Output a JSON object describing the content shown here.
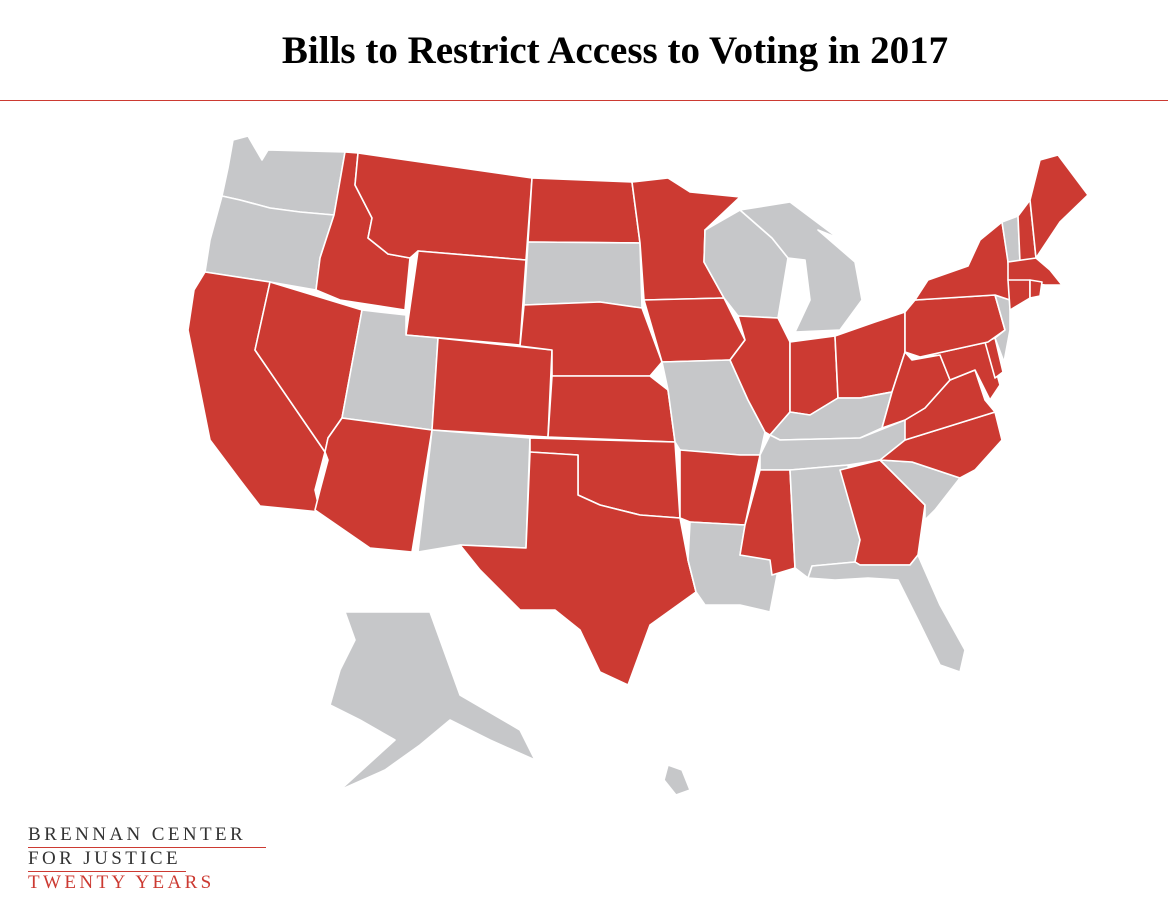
{
  "title": "Bills to Restrict Access to Voting in 2017",
  "colors": {
    "restrict": "#cc3a32",
    "none": "#c6c7c9",
    "rule": "#cc3a32"
  },
  "states": {
    "restrict": [
      "ID",
      "MT",
      "ND",
      "WY",
      "NE",
      "KS",
      "CO",
      "AZ",
      "NV",
      "CA",
      "TX",
      "OK",
      "MN",
      "IA",
      "AR",
      "MS",
      "IL",
      "IN",
      "OH",
      "WV",
      "VA",
      "NC",
      "GA",
      "PA",
      "NY",
      "NH",
      "ME",
      "MA",
      "CT",
      "RI",
      "MD",
      "DE"
    ],
    "none": [
      "WA",
      "OR",
      "UT",
      "NM",
      "SD",
      "MO",
      "LA",
      "WI",
      "MI",
      "KY",
      "TN",
      "AL",
      "FL",
      "SC",
      "NJ",
      "VT",
      "AK",
      "HI"
    ]
  },
  "logo": {
    "line1": "BRENNAN CENTER",
    "line2": "FOR JUSTICE",
    "line3": "TWENTY YEARS"
  }
}
